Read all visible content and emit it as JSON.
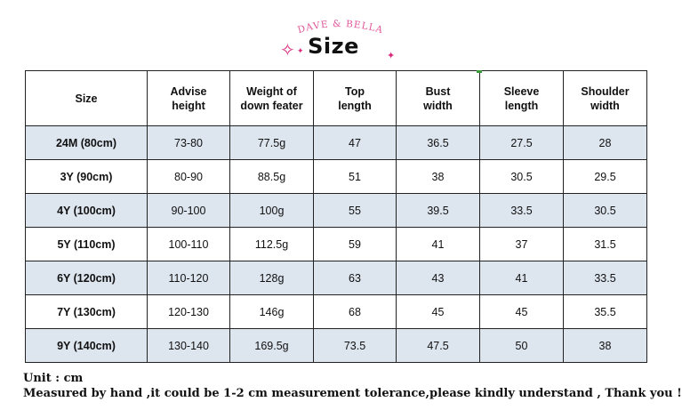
{
  "brand": "DAVE & BELLA",
  "title": "Size",
  "icons": [
    "sparkle-large-icon",
    "sparkle-small-icon",
    "sparkle-small-right-icon"
  ],
  "colors": {
    "brand_pink": "#e0579a",
    "sparkle": "#d8297a",
    "row_shade": "#dde5ef"
  },
  "table": {
    "headers": [
      "Size",
      "Advise\nheight",
      "Weight of\ndown feater",
      "Top\nlength",
      "Bust\nwidth",
      "Sleeve\nlength",
      "Shoulder\nwidth"
    ],
    "rows": [
      [
        "24M (80cm)",
        "73-80",
        "77.5g",
        "47",
        "36.5",
        "27.5",
        "28"
      ],
      [
        "3Y (90cm)",
        "80-90",
        "88.5g",
        "51",
        "38",
        "30.5",
        "29.5"
      ],
      [
        "4Y (100cm)",
        "90-100",
        "100g",
        "55",
        "39.5",
        "33.5",
        "30.5"
      ],
      [
        "5Y (110cm)",
        "100-110",
        "112.5g",
        "59",
        "41",
        "37",
        "31.5"
      ],
      [
        "6Y (120cm)",
        "110-120",
        "128g",
        "63",
        "43",
        "41",
        "33.5"
      ],
      [
        "7Y (130cm)",
        "120-130",
        "146g",
        "68",
        "45",
        "45",
        "35.5"
      ],
      [
        "9Y (140cm)",
        "130-140",
        "169.5g",
        "73.5",
        "47.5",
        "50",
        "38"
      ]
    ]
  },
  "footer": {
    "unit": "Unit : cm",
    "note": "Measured by hand ,it could be 1-2 cm measurement tolerance,please kindly understand , Thank you !"
  }
}
